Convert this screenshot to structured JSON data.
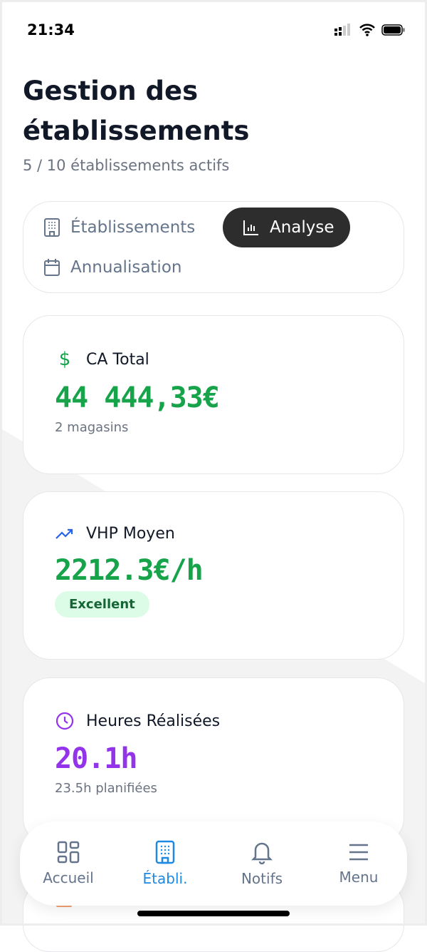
{
  "status": {
    "time": "21:34"
  },
  "header": {
    "title_line1": "Gestion des",
    "title_line2": "établissements",
    "subtitle": "5 / 10 établissements actifs"
  },
  "tabs": [
    {
      "label": "Établissements",
      "icon": "building-icon",
      "active": false
    },
    {
      "label": "Analyse",
      "icon": "bar-chart-icon",
      "active": true
    },
    {
      "label": "Annualisation",
      "icon": "calendar-icon",
      "active": false
    }
  ],
  "cards": [
    {
      "title": "CA Total",
      "icon": "dollar-icon",
      "value": "44 444,33€",
      "note": "2 magasins",
      "color": "#16a34a"
    },
    {
      "title": "VHP Moyen",
      "icon": "trending-up-icon",
      "value": "2212.3€/h",
      "badge": "Excellent",
      "color": "#16a34a"
    },
    {
      "title": "Heures Réalisées",
      "icon": "clock-icon",
      "value": "20.1h",
      "note": "23.5h planifiées",
      "color": "#9333ea"
    }
  ],
  "nav": [
    {
      "label": "Accueil",
      "icon": "grid-icon"
    },
    {
      "label": "Établi.",
      "icon": "building-icon",
      "active": true
    },
    {
      "label": "Notifs",
      "icon": "bell-icon"
    },
    {
      "label": "Menu",
      "icon": "menu-icon"
    }
  ],
  "colors": {
    "accent": "#1e88e5",
    "green": "#16a34a",
    "purple": "#9333ea"
  }
}
